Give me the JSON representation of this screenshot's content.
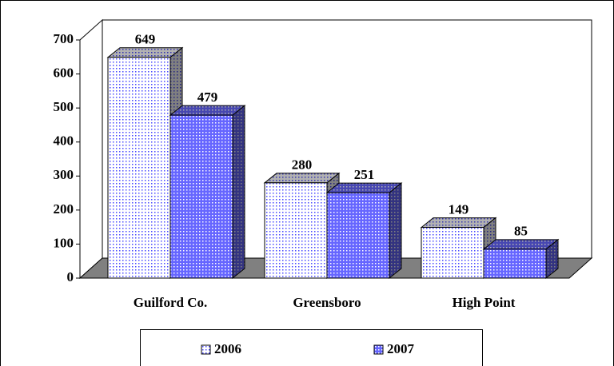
{
  "chart_data": {
    "type": "bar3d",
    "categories": [
      "Guilford Co.",
      "Greensboro",
      "High Point"
    ],
    "series": [
      {
        "name": "2006",
        "color": "#4a4aff",
        "values": [
          649,
          280,
          149
        ]
      },
      {
        "name": "2007",
        "color": "#6666ff",
        "values": [
          479,
          251,
          85
        ]
      }
    ],
    "ylim": [
      0,
      700
    ],
    "yticks": [
      0,
      100,
      200,
      300,
      400,
      500,
      600,
      700
    ],
    "grid": false,
    "legend": "bottom"
  }
}
